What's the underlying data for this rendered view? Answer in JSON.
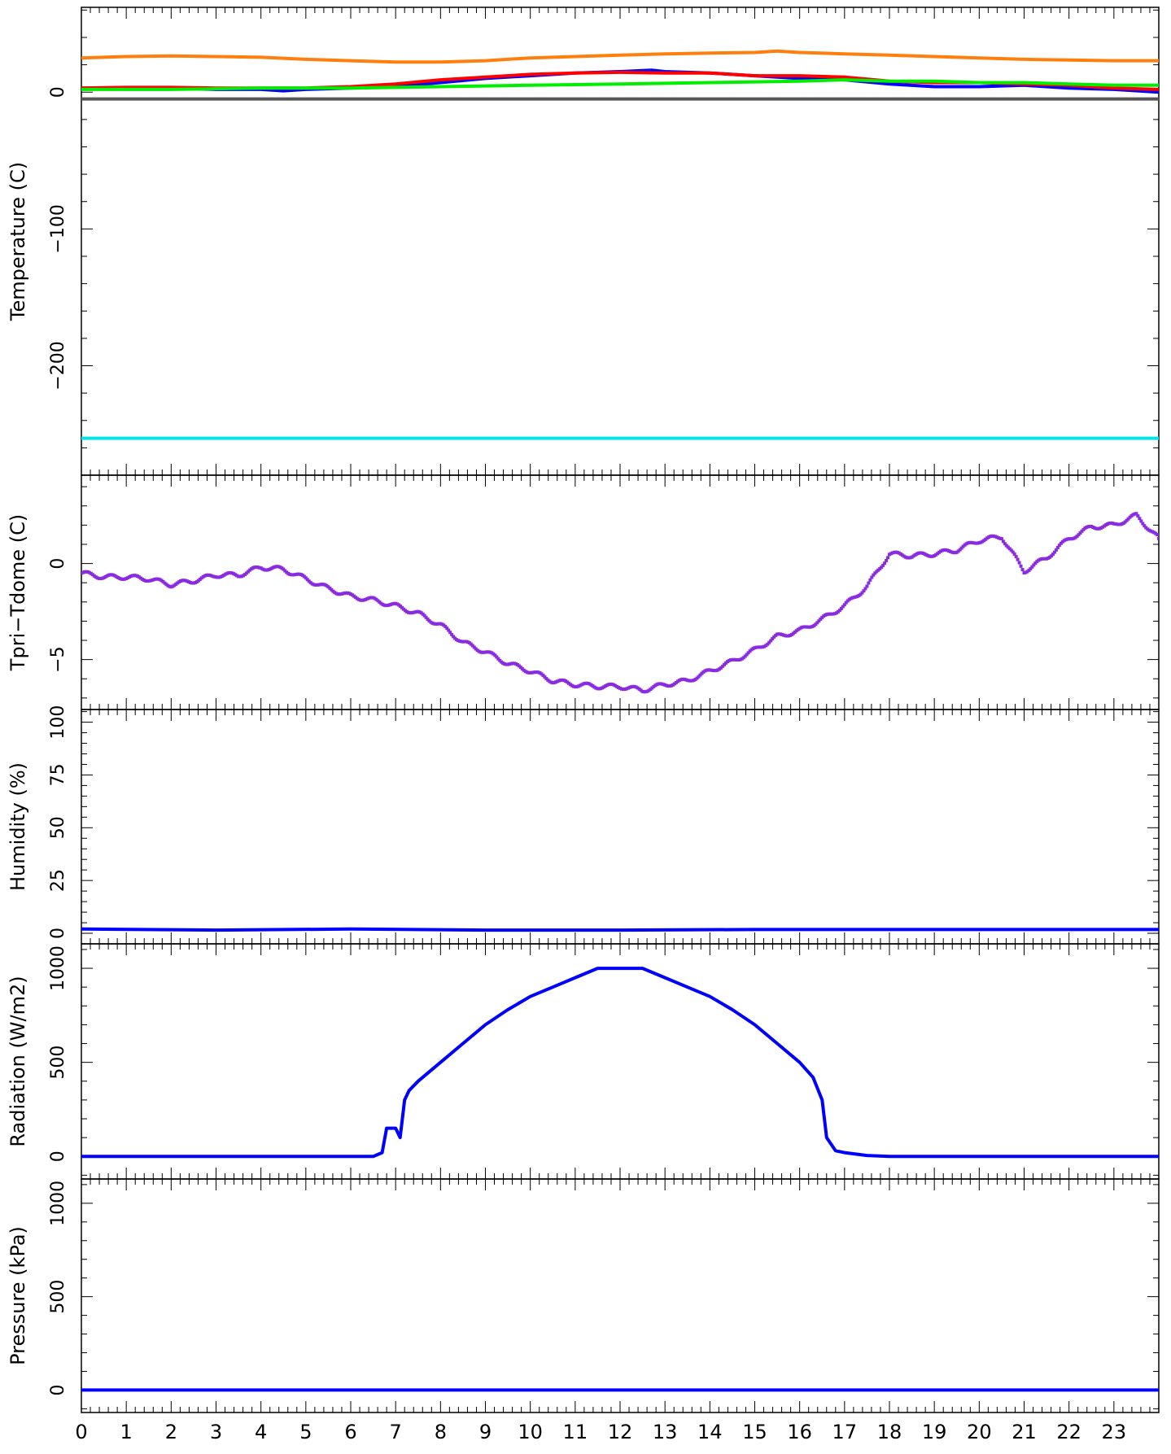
{
  "chart_data": [
    {
      "type": "line",
      "ylabel": "Temperature (C)",
      "xlim": [
        0,
        24
      ],
      "ylim": [
        -280,
        62
      ],
      "yticks": [
        0,
        -100,
        -200
      ],
      "ytick_labels": [
        "0",
        "−100",
        "−200"
      ],
      "series": [
        {
          "color": "#ff7f0e",
          "points": [
            [
              0,
              25
            ],
            [
              1,
              26
            ],
            [
              2,
              26.5
            ],
            [
              3,
              26
            ],
            [
              4,
              25.5
            ],
            [
              5,
              24
            ],
            [
              6,
              23
            ],
            [
              7,
              22
            ],
            [
              8,
              22
            ],
            [
              9,
              23
            ],
            [
              10,
              25
            ],
            [
              11,
              26
            ],
            [
              12,
              27
            ],
            [
              13,
              28
            ],
            [
              14,
              28.5
            ],
            [
              15,
              29
            ],
            [
              15.5,
              30
            ],
            [
              16,
              29
            ],
            [
              17,
              28
            ],
            [
              18,
              27
            ],
            [
              19,
              26
            ],
            [
              20,
              25
            ],
            [
              21,
              24
            ],
            [
              22,
              23.5
            ],
            [
              23,
              23
            ],
            [
              24,
              23
            ]
          ]
        },
        {
          "color": "#0000ff",
          "points": [
            [
              0,
              3
            ],
            [
              1,
              3
            ],
            [
              2,
              3
            ],
            [
              3,
              2
            ],
            [
              4,
              2
            ],
            [
              4.5,
              1
            ],
            [
              5,
              2
            ],
            [
              6,
              3
            ],
            [
              7,
              4
            ],
            [
              8,
              7
            ],
            [
              9,
              10
            ],
            [
              10,
              12
            ],
            [
              11,
              14
            ],
            [
              12,
              15
            ],
            [
              12.7,
              16
            ],
            [
              13,
              15
            ],
            [
              14,
              14
            ],
            [
              15,
              12
            ],
            [
              16,
              10
            ],
            [
              17,
              9
            ],
            [
              18,
              6
            ],
            [
              19,
              4
            ],
            [
              20,
              4
            ],
            [
              21,
              5
            ],
            [
              22,
              3
            ],
            [
              23,
              2
            ],
            [
              24,
              0
            ]
          ]
        },
        {
          "color": "#ff0000",
          "points": [
            [
              0,
              3
            ],
            [
              1,
              3.5
            ],
            [
              2,
              3.5
            ],
            [
              3,
              3
            ],
            [
              4,
              3
            ],
            [
              5,
              3
            ],
            [
              6,
              4
            ],
            [
              7,
              6
            ],
            [
              8,
              9
            ],
            [
              9,
              11
            ],
            [
              10,
              13
            ],
            [
              11,
              14
            ],
            [
              12,
              14.5
            ],
            [
              13,
              14
            ],
            [
              14,
              14
            ],
            [
              15,
              12
            ],
            [
              16,
              12
            ],
            [
              17,
              11
            ],
            [
              18,
              8
            ],
            [
              19,
              7
            ],
            [
              20,
              7
            ],
            [
              21,
              6
            ],
            [
              22,
              5
            ],
            [
              23,
              3
            ],
            [
              24,
              2
            ]
          ]
        },
        {
          "color": "#00ee00",
          "points": [
            [
              0,
              2
            ],
            [
              2,
              2
            ],
            [
              4,
              3
            ],
            [
              6,
              3
            ],
            [
              8,
              4
            ],
            [
              10,
              5
            ],
            [
              12,
              6
            ],
            [
              14,
              7
            ],
            [
              16,
              8
            ],
            [
              17,
              9
            ],
            [
              18,
              8
            ],
            [
              19,
              8
            ],
            [
              20,
              7
            ],
            [
              21,
              7
            ],
            [
              22,
              6
            ],
            [
              23,
              5
            ],
            [
              24,
              5
            ]
          ]
        },
        {
          "color": "#555555",
          "points": [
            [
              0,
              -5
            ],
            [
              24,
              -5
            ]
          ]
        },
        {
          "color": "#00e5e5",
          "points": [
            [
              0,
              -253
            ],
            [
              24,
              -253
            ]
          ]
        }
      ]
    },
    {
      "type": "scatter",
      "ylabel": "Tpri−Tdome (C)",
      "xlim": [
        0,
        24
      ],
      "ylim": [
        -7.6,
        4.6
      ],
      "yticks": [
        0,
        -5
      ],
      "ytick_labels": [
        "0",
        "−5"
      ],
      "series": [
        {
          "color": "#8a2be2",
          "points": [
            [
              0,
              -0.5
            ],
            [
              0.5,
              -0.7
            ],
            [
              1,
              -0.7
            ],
            [
              1.5,
              -0.8
            ],
            [
              2,
              -1.1
            ],
            [
              2.5,
              -0.9
            ],
            [
              3,
              -0.6
            ],
            [
              3.5,
              -0.6
            ],
            [
              4,
              -0.2
            ],
            [
              4.5,
              -0.3
            ],
            [
              5,
              -0.8
            ],
            [
              5.5,
              -1.3
            ],
            [
              6,
              -1.7
            ],
            [
              6.5,
              -1.9
            ],
            [
              7,
              -2.2
            ],
            [
              7.5,
              -2.6
            ],
            [
              8,
              -3.2
            ],
            [
              8.5,
              -4.1
            ],
            [
              9,
              -4.6
            ],
            [
              9.5,
              -5.2
            ],
            [
              10,
              -5.6
            ],
            [
              10.5,
              -6.1
            ],
            [
              11,
              -6.3
            ],
            [
              11.5,
              -6.4
            ],
            [
              12,
              -6.4
            ],
            [
              12.5,
              -6.6
            ],
            [
              13,
              -6.3
            ],
            [
              13.5,
              -6.1
            ],
            [
              14,
              -5.6
            ],
            [
              14.5,
              -5.1
            ],
            [
              15,
              -4.5
            ],
            [
              15.5,
              -3.8
            ],
            [
              16,
              -3.5
            ],
            [
              16.5,
              -2.9
            ],
            [
              17,
              -2.2
            ],
            [
              17.5,
              -1.2
            ],
            [
              18,
              0.5
            ],
            [
              18.5,
              0.4
            ],
            [
              19,
              0.5
            ],
            [
              19.5,
              0.7
            ],
            [
              20,
              1.2
            ],
            [
              20.5,
              1.4
            ],
            [
              21,
              -0.4
            ],
            [
              21.5,
              0.3
            ],
            [
              22,
              1.3
            ],
            [
              22.5,
              1.9
            ],
            [
              23,
              2.0
            ],
            [
              23.5,
              2.5
            ],
            [
              24,
              1.3
            ]
          ]
        }
      ]
    },
    {
      "type": "line",
      "ylabel": "Humidity (%)",
      "xlim": [
        0,
        24
      ],
      "ylim": [
        -5,
        106
      ],
      "yticks": [
        0,
        25,
        50,
        75,
        100
      ],
      "ytick_labels": [
        "0",
        "25",
        "50",
        "75",
        "100"
      ],
      "series": [
        {
          "color": "#0000ff",
          "points": [
            [
              0,
              2
            ],
            [
              3,
              1.5
            ],
            [
              6,
              2
            ],
            [
              9,
              1.5
            ],
            [
              12,
              1.5
            ],
            [
              15,
              1.8
            ],
            [
              18,
              1.8
            ],
            [
              21,
              1.8
            ],
            [
              24,
              1.8
            ]
          ]
        }
      ]
    },
    {
      "type": "line",
      "ylabel": "Radiation (W/m2)",
      "xlim": [
        0,
        24
      ],
      "ylim": [
        -120,
        1130
      ],
      "yticks": [
        0,
        500,
        1000
      ],
      "ytick_labels": [
        "0",
        "500",
        "1000"
      ],
      "series": [
        {
          "color": "#0000ff",
          "points": [
            [
              0,
              0
            ],
            [
              6.5,
              0
            ],
            [
              6.7,
              20
            ],
            [
              6.8,
              150
            ],
            [
              7.0,
              150
            ],
            [
              7.1,
              100
            ],
            [
              7.2,
              300
            ],
            [
              7.3,
              350
            ],
            [
              7.5,
              400
            ],
            [
              8,
              500
            ],
            [
              8.5,
              600
            ],
            [
              9,
              700
            ],
            [
              9.5,
              780
            ],
            [
              10,
              850
            ],
            [
              10.5,
              900
            ],
            [
              11,
              950
            ],
            [
              11.5,
              1000
            ],
            [
              12,
              1000
            ],
            [
              12.5,
              1000
            ],
            [
              13,
              950
            ],
            [
              13.5,
              900
            ],
            [
              14,
              850
            ],
            [
              14.5,
              780
            ],
            [
              15,
              700
            ],
            [
              15.5,
              600
            ],
            [
              16,
              500
            ],
            [
              16.3,
              420
            ],
            [
              16.5,
              300
            ],
            [
              16.6,
              100
            ],
            [
              16.8,
              30
            ],
            [
              17,
              20
            ],
            [
              17.5,
              5
            ],
            [
              18,
              0
            ],
            [
              24,
              0
            ]
          ]
        }
      ]
    },
    {
      "type": "line",
      "ylabel": "Pressure (kPa)",
      "xlim": [
        0,
        24
      ],
      "ylim": [
        -120,
        1130
      ],
      "yticks": [
        0,
        500,
        1000
      ],
      "ytick_labels": [
        "0",
        "500",
        "1000"
      ],
      "series": [
        {
          "color": "#0000ff",
          "points": [
            [
              0,
              0
            ],
            [
              24,
              0
            ]
          ]
        }
      ]
    }
  ],
  "x_axis": {
    "ticks": [
      0,
      1,
      2,
      3,
      4,
      5,
      6,
      7,
      8,
      9,
      10,
      11,
      12,
      13,
      14,
      15,
      16,
      17,
      18,
      19,
      20,
      21,
      22,
      23
    ],
    "tick_labels": [
      "0",
      "1",
      "2",
      "3",
      "4",
      "5",
      "6",
      "7",
      "8",
      "9",
      "10",
      "11",
      "12",
      "13",
      "14",
      "15",
      "16",
      "17",
      "18",
      "19",
      "20",
      "21",
      "22",
      "23"
    ]
  }
}
